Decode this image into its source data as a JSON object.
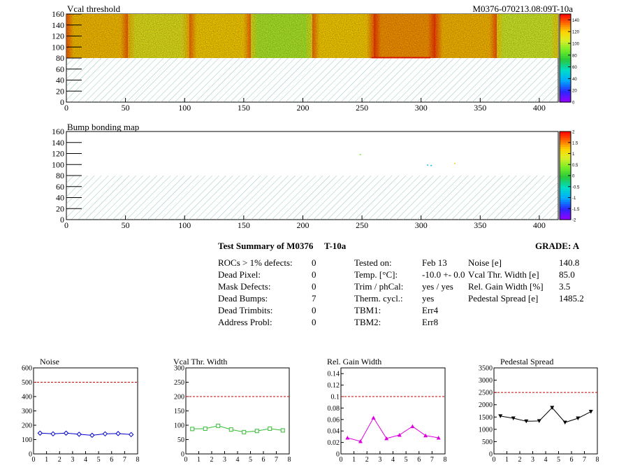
{
  "chart_data": [
    {
      "type": "heatmap",
      "title": "Vcal threshold",
      "corner_label": "M0376-070213.08:09T-10a",
      "x_ticks": [
        0,
        50,
        100,
        150,
        200,
        250,
        300,
        350,
        400
      ],
      "y_ticks": [
        0,
        20,
        40,
        60,
        80,
        100,
        120,
        140,
        160
      ],
      "xlim": [
        0,
        416
      ],
      "ylim": [
        0,
        160
      ],
      "filled_rows": [
        80,
        160
      ],
      "hatched_rows": [
        0,
        80
      ],
      "palette_ticks": [
        0,
        20,
        40,
        60,
        80,
        100,
        120,
        140
      ],
      "palette_range": [
        0,
        150
      ],
      "roc_mean_values": [
        122,
        110,
        120,
        98,
        120,
        128,
        123,
        104
      ],
      "hot_row": {
        "x": [
          258,
          308
        ],
        "y": [
          80,
          82
        ],
        "value": 145
      }
    },
    {
      "type": "heatmap",
      "title": "Bump bonding map",
      "x_ticks": [
        0,
        50,
        100,
        150,
        200,
        250,
        300,
        350,
        400
      ],
      "y_ticks": [
        0,
        20,
        40,
        60,
        80,
        100,
        120,
        140,
        160
      ],
      "xlim": [
        0,
        416
      ],
      "ylim": [
        0,
        160
      ],
      "hatched_rows": [
        0,
        80
      ],
      "palette_ticks": [
        "2",
        "1.5",
        "1",
        "0.5",
        "0",
        "-0.5",
        "-1",
        "-1.5",
        "-2"
      ],
      "palette_range": [
        -2,
        2
      ],
      "points": [
        {
          "x": 248,
          "y": 119,
          "value": 0.3
        },
        {
          "x": 305,
          "y": 100,
          "value": -0.8
        },
        {
          "x": 308,
          "y": 99,
          "value": -0.9
        },
        {
          "x": 328,
          "y": 103,
          "value": 1.1
        }
      ]
    },
    {
      "type": "line",
      "title": "Noise",
      "color": "#0000cc",
      "marker": "diamond",
      "x": [
        0.5,
        1.5,
        2.5,
        3.5,
        4.5,
        5.5,
        6.5,
        7.5
      ],
      "values": [
        145,
        140,
        145,
        137,
        130,
        140,
        142,
        135
      ],
      "xlim": [
        0,
        8
      ],
      "ylim": [
        0,
        600
      ],
      "x_ticks": [
        0,
        1,
        2,
        3,
        4,
        5,
        6,
        7,
        8
      ],
      "y_ticks": [
        0,
        100,
        200,
        300,
        400,
        500,
        600
      ],
      "threshold": 500,
      "threshold_color": "#cc0000"
    },
    {
      "type": "line",
      "title": "Vcal Thr. Width",
      "color": "#33bb33",
      "marker": "square",
      "x": [
        0.5,
        1.5,
        2.5,
        3.5,
        4.5,
        5.5,
        6.5,
        7.5
      ],
      "values": [
        87,
        88,
        98,
        85,
        76,
        80,
        88,
        82
      ],
      "xlim": [
        0,
        8
      ],
      "ylim": [
        0,
        300
      ],
      "x_ticks": [
        0,
        1,
        2,
        3,
        4,
        5,
        6,
        7,
        8
      ],
      "y_ticks": [
        0,
        50,
        100,
        150,
        200,
        250,
        300
      ],
      "threshold": 200,
      "threshold_color": "#cc0000"
    },
    {
      "type": "line",
      "title": "Rel. Gain Width",
      "color": "#dd00dd",
      "marker": "triangle-up",
      "x": [
        0.5,
        1.5,
        2.5,
        3.5,
        4.5,
        5.5,
        6.5,
        7.5
      ],
      "values": [
        0.028,
        0.022,
        0.063,
        0.027,
        0.033,
        0.048,
        0.032,
        0.028
      ],
      "xlim": [
        0,
        8
      ],
      "ylim": [
        0,
        0.15
      ],
      "x_ticks": [
        0,
        1,
        2,
        3,
        4,
        5,
        6,
        7,
        8
      ],
      "y_ticks": [
        "0",
        "0.02",
        "0.04",
        "0.06",
        "0.08",
        "0.1",
        "0.12",
        "0.14"
      ],
      "y_tick_values": [
        0,
        0.02,
        0.04,
        0.06,
        0.08,
        0.1,
        0.12,
        0.14
      ],
      "threshold": 0.1,
      "threshold_color": "#cc0000"
    },
    {
      "type": "line",
      "title": "Pedestal Spread",
      "color": "#000000",
      "marker": "triangle-down",
      "x": [
        0.5,
        1.5,
        2.5,
        3.5,
        4.5,
        5.5,
        6.5,
        7.5
      ],
      "values": [
        1540,
        1450,
        1330,
        1340,
        1880,
        1280,
        1450,
        1720
      ],
      "xlim": [
        0,
        8
      ],
      "ylim": [
        0,
        3500
      ],
      "x_ticks": [
        0,
        1,
        2,
        3,
        4,
        5,
        6,
        7,
        8
      ],
      "y_ticks": [
        0,
        500,
        1000,
        1500,
        2000,
        2500,
        3000,
        3500
      ],
      "threshold": 2500,
      "threshold_color": "#cc0000"
    }
  ],
  "summary": {
    "title": "Test Summary of M0376",
    "temp_tag": "T-10a",
    "grade": "GRADE:  A",
    "col1": [
      {
        "label": "ROCs > 1% defects:",
        "value": "0"
      },
      {
        "label": "Dead Pixel:",
        "value": "0"
      },
      {
        "label": "Mask Defects:",
        "value": "0"
      },
      {
        "label": "Dead Bumps:",
        "value": "7"
      },
      {
        "label": "Dead Trimbits:",
        "value": "0"
      },
      {
        "label": "Address Probl:",
        "value": "0"
      }
    ],
    "col2": [
      {
        "label": "Tested on:",
        "value": "Feb 13"
      },
      {
        "label": "Temp. [°C]:",
        "value": "-10.0 +- 0.0"
      },
      {
        "label": "Trim / phCal:",
        "value": "yes / yes"
      },
      {
        "label": "Therm. cycl.:",
        "value": "yes"
      },
      {
        "label": "TBM1:",
        "value": "Err4"
      },
      {
        "label": "TBM2:",
        "value": "Err8"
      }
    ],
    "col3": [
      {
        "label": "Noise [e]",
        "value": "140.8"
      },
      {
        "label": "Vcal Thr. Width [e]",
        "value": "85.0"
      },
      {
        "label": "Rel. Gain Width [%]",
        "value": "3.5"
      },
      {
        "label": "Pedestal Spread [e]",
        "value": "1485.2"
      }
    ]
  },
  "colors": {
    "threshold_line": "#cc0000",
    "hatch": "#7fb8b0",
    "heat_green": "#33dd22",
    "heat_yellow": "#f2f230"
  }
}
